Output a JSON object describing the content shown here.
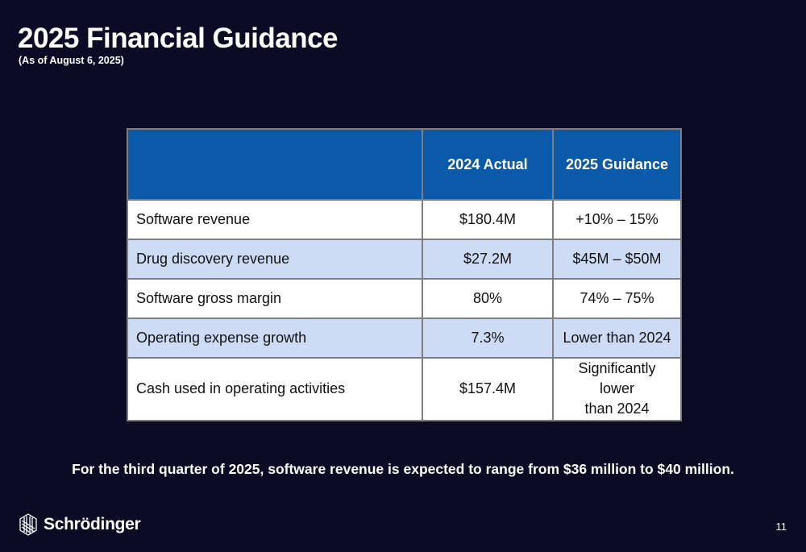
{
  "header": {
    "title": "2025 Financial Guidance",
    "subtitle": "(As of August 6, 2025)"
  },
  "table": {
    "columns": [
      "",
      "2024 Actual",
      "2025 Guidance"
    ],
    "rows": [
      {
        "metric": "Software revenue",
        "actual_2024": "$180.4M",
        "guidance_2025": "+10% – 15%"
      },
      {
        "metric": "Drug discovery revenue",
        "actual_2024": "$27.2M",
        "guidance_2025": "$45M – $50M"
      },
      {
        "metric": "Software gross margin",
        "actual_2024": "80%",
        "guidance_2025": "74% – 75%"
      },
      {
        "metric": "Operating expense growth",
        "actual_2024": "7.3%",
        "guidance_2025": "Lower than 2024"
      },
      {
        "metric": "Cash used in operating activities",
        "actual_2024": "$157.4M",
        "guidance_2025_line1": "Significantly lower",
        "guidance_2025_line2": "than 2024"
      }
    ]
  },
  "footnote": "For the third quarter of 2025, software revenue is expected to range from $36 million to $40 million.",
  "footer": {
    "logo_text": "Schrödinger",
    "page_number": "11"
  },
  "colors": {
    "background": "#0d0a26",
    "header_fill": "#0b5aa9",
    "row_tint": "#cddbf5",
    "row_white": "#ffffff",
    "border": "#7f7f7f"
  }
}
